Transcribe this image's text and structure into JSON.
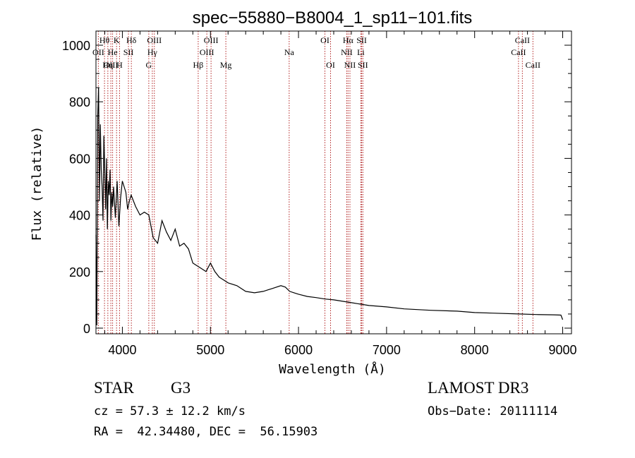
{
  "chart_data": {
    "type": "line",
    "title": "spec−55880−B8004_1_sp11−101.fits",
    "xlabel": "Wavelength (Å)",
    "ylabel": "Flux (relative)",
    "xlim": [
      3700,
      9100
    ],
    "ylim": [
      -20,
      1050
    ],
    "x_ticks": [
      4000,
      5000,
      6000,
      7000,
      8000,
      9000
    ],
    "y_ticks": [
      0,
      200,
      400,
      600,
      800,
      1000
    ],
    "series": [
      {
        "name": "flux",
        "x": [
          3700,
          3710,
          3720,
          3730,
          3740,
          3750,
          3760,
          3770,
          3780,
          3790,
          3800,
          3810,
          3820,
          3830,
          3840,
          3850,
          3860,
          3870,
          3880,
          3890,
          3900,
          3920,
          3940,
          3960,
          3980,
          4000,
          4020,
          4040,
          4060,
          4080,
          4100,
          4150,
          4200,
          4250,
          4300,
          4350,
          4400,
          4450,
          4500,
          4550,
          4600,
          4650,
          4700,
          4750,
          4800,
          4850,
          4900,
          4950,
          5000,
          5050,
          5100,
          5150,
          5200,
          5300,
          5400,
          5500,
          5600,
          5700,
          5800,
          5850,
          5900,
          5950,
          6000,
          6100,
          6200,
          6300,
          6400,
          6500,
          6600,
          6700,
          6800,
          7000,
          7200,
          7500,
          7800,
          8000,
          8200,
          8500,
          8700,
          8900,
          8980,
          9000
        ],
        "values": [
          330,
          10,
          750,
          850,
          450,
          720,
          560,
          500,
          380,
          680,
          560,
          420,
          600,
          350,
          520,
          470,
          560,
          380,
          480,
          430,
          500,
          390,
          520,
          360,
          460,
          520,
          500,
          480,
          420,
          450,
          470,
          430,
          400,
          410,
          400,
          320,
          300,
          380,
          340,
          310,
          350,
          290,
          300,
          280,
          230,
          220,
          210,
          200,
          230,
          200,
          180,
          170,
          160,
          150,
          130,
          125,
          130,
          140,
          150,
          145,
          130,
          125,
          120,
          112,
          108,
          103,
          100,
          95,
          90,
          85,
          80,
          75,
          68,
          63,
          60,
          55,
          53,
          50,
          48,
          47,
          46,
          30
        ]
      }
    ],
    "lines": [
      {
        "label": "Hθ",
        "wavelength": 3797,
        "row": 1
      },
      {
        "label": "OII",
        "wavelength": 3727,
        "row": 2
      },
      {
        "label": "OIII",
        "wavelength": 3869,
        "row": 3
      },
      {
        "label": "He",
        "wavelength": 3889,
        "row": 2
      },
      {
        "label": "Hη",
        "wavelength": 3835,
        "row": 3
      },
      {
        "label": "K",
        "wavelength": 3934,
        "row": 1
      },
      {
        "label": "H",
        "wavelength": 3968,
        "row": 3
      },
      {
        "label": "SII",
        "wavelength": 4069,
        "row": 2
      },
      {
        "label": "Hδ",
        "wavelength": 4102,
        "row": 1
      },
      {
        "label": "OIII",
        "wavelength": 4363,
        "row": 1
      },
      {
        "label": "Hγ",
        "wavelength": 4340,
        "row": 2
      },
      {
        "label": "G",
        "wavelength": 4300,
        "row": 3
      },
      {
        "label": "Hβ",
        "wavelength": 4861,
        "row": 3
      },
      {
        "label": "OIII",
        "wavelength": 5007,
        "row": 1
      },
      {
        "label": "OIII",
        "wavelength": 4959,
        "row": 2
      },
      {
        "label": "Mg",
        "wavelength": 5175,
        "row": 3
      },
      {
        "label": "Na",
        "wavelength": 5894,
        "row": 2
      },
      {
        "label": "OI",
        "wavelength": 6300,
        "row": 1
      },
      {
        "label": "OI",
        "wavelength": 6364,
        "row": 3
      },
      {
        "label": "Hα",
        "wavelength": 6563,
        "row": 1
      },
      {
        "label": "NII",
        "wavelength": 6548,
        "row": 2
      },
      {
        "label": "NII",
        "wavelength": 6584,
        "row": 3
      },
      {
        "label": "SII",
        "wavelength": 6717,
        "row": 1
      },
      {
        "label": "Li",
        "wavelength": 6708,
        "row": 2
      },
      {
        "label": "SII",
        "wavelength": 6731,
        "row": 3
      },
      {
        "label": "CaII",
        "wavelength": 8542,
        "row": 1
      },
      {
        "label": "CaII",
        "wavelength": 8498,
        "row": 2
      },
      {
        "label": "CaII",
        "wavelength": 8662,
        "row": 3
      }
    ]
  },
  "info": {
    "object_class": "STAR",
    "subclass": "G3",
    "survey": "LAMOST DR3",
    "cz": "cz = 57.3 ± 12.2 km/s",
    "obs_date": "Obs−Date: 20111114",
    "coords": "RA =  42.34480, DEC =  56.15903"
  },
  "colors": {
    "axis": "#000000",
    "line_marker": "#b22222",
    "spectrum": "#000000"
  }
}
